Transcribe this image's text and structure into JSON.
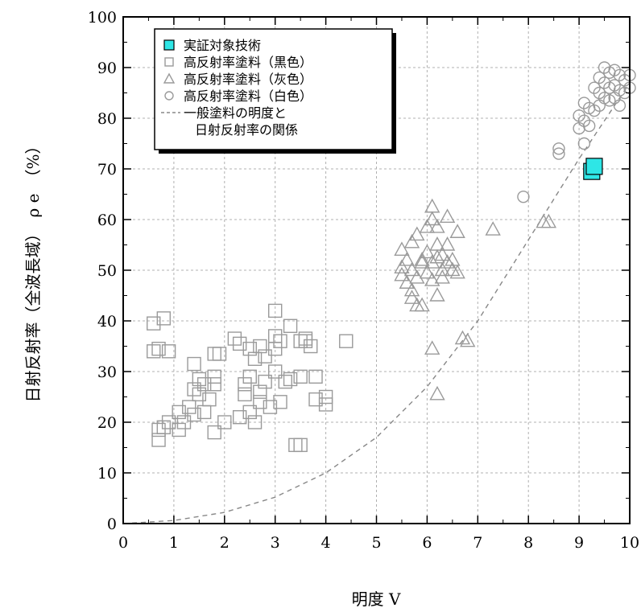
{
  "chart_data": {
    "type": "scatter",
    "xlabel": "明度 V",
    "ylabel": "日射反射率（全波長域）　ρ e　（%）",
    "xlim": [
      0,
      10
    ],
    "ylim": [
      0,
      100
    ],
    "x_ticks": [
      0,
      1,
      2,
      3,
      4,
      5,
      6,
      7,
      8,
      9,
      10
    ],
    "y_ticks": [
      0,
      10,
      20,
      30,
      40,
      50,
      60,
      70,
      80,
      90,
      100
    ],
    "grid": true,
    "legend_position": "top-left",
    "colors": {
      "target": "#2ee6e6",
      "marker_gray": "#9a9a9a",
      "curve": "#888888",
      "frame": "#000000"
    },
    "series": [
      {
        "name": "実証対象技術",
        "marker": "square-filled",
        "points": [
          [
            9.25,
            69.5
          ],
          [
            9.3,
            70.5
          ]
        ]
      },
      {
        "name": "高反射率塗料（黒色）",
        "marker": "square",
        "points": [
          [
            0.6,
            34
          ],
          [
            0.6,
            39.5
          ],
          [
            0.7,
            16.5
          ],
          [
            0.7,
            18.5
          ],
          [
            0.7,
            34.5
          ],
          [
            0.8,
            40.5
          ],
          [
            0.8,
            19
          ],
          [
            0.9,
            34
          ],
          [
            0.9,
            20
          ],
          [
            1.1,
            18.5
          ],
          [
            1.1,
            22
          ],
          [
            1.2,
            20
          ],
          [
            1.3,
            23
          ],
          [
            1.4,
            31.5
          ],
          [
            1.4,
            26.5
          ],
          [
            1.4,
            21.5
          ],
          [
            1.5,
            28.5
          ],
          [
            1.5,
            25.5
          ],
          [
            1.6,
            22
          ],
          [
            1.6,
            27.5
          ],
          [
            1.7,
            24.5
          ],
          [
            1.8,
            29
          ],
          [
            1.8,
            27.5
          ],
          [
            1.8,
            33.5
          ],
          [
            1.8,
            18
          ],
          [
            1.9,
            33.5
          ],
          [
            2.0,
            20
          ],
          [
            2.2,
            36.5
          ],
          [
            2.3,
            35.5
          ],
          [
            2.3,
            21
          ],
          [
            2.4,
            27.5
          ],
          [
            2.4,
            25.5
          ],
          [
            2.5,
            34.5
          ],
          [
            2.5,
            29
          ],
          [
            2.5,
            22
          ],
          [
            2.6,
            32.5
          ],
          [
            2.6,
            20
          ],
          [
            2.7,
            35
          ],
          [
            2.7,
            26
          ],
          [
            2.7,
            24
          ],
          [
            2.8,
            33
          ],
          [
            2.8,
            28
          ],
          [
            2.9,
            23
          ],
          [
            3.0,
            42
          ],
          [
            3.0,
            37
          ],
          [
            3.0,
            34.5
          ],
          [
            3.0,
            30
          ],
          [
            3.1,
            36
          ],
          [
            3.1,
            24
          ],
          [
            3.2,
            28
          ],
          [
            3.3,
            39
          ],
          [
            3.3,
            28.5
          ],
          [
            3.4,
            15.5
          ],
          [
            3.5,
            36
          ],
          [
            3.5,
            29
          ],
          [
            3.5,
            15.5
          ],
          [
            3.6,
            36.5
          ],
          [
            3.6,
            36
          ],
          [
            3.7,
            35
          ],
          [
            3.8,
            29
          ],
          [
            3.8,
            24.5
          ],
          [
            4.0,
            25
          ],
          [
            4.0,
            23.5
          ],
          [
            4.4,
            36
          ]
        ]
      },
      {
        "name": "高反射率塗料（灰色）",
        "marker": "triangle",
        "points": [
          [
            5.5,
            49
          ],
          [
            5.5,
            50.5
          ],
          [
            5.5,
            54
          ],
          [
            5.6,
            47.5
          ],
          [
            5.6,
            52
          ],
          [
            5.7,
            46
          ],
          [
            5.7,
            44.5
          ],
          [
            5.7,
            50
          ],
          [
            5.7,
            55.5
          ],
          [
            5.8,
            57
          ],
          [
            5.8,
            43
          ],
          [
            5.8,
            48.5
          ],
          [
            5.9,
            52
          ],
          [
            5.9,
            51.5
          ],
          [
            5.9,
            43
          ],
          [
            6.0,
            53.5
          ],
          [
            6.0,
            58.5
          ],
          [
            6.0,
            49.5
          ],
          [
            6.1,
            51.5
          ],
          [
            6.1,
            62.5
          ],
          [
            6.1,
            60
          ],
          [
            6.1,
            48
          ],
          [
            6.1,
            34.5
          ],
          [
            6.2,
            58.5
          ],
          [
            6.2,
            55
          ],
          [
            6.2,
            52.5
          ],
          [
            6.2,
            45
          ],
          [
            6.2,
            25.5
          ],
          [
            6.3,
            53
          ],
          [
            6.3,
            50
          ],
          [
            6.3,
            48.5
          ],
          [
            6.4,
            60.5
          ],
          [
            6.4,
            55
          ],
          [
            6.4,
            51.5
          ],
          [
            6.5,
            52
          ],
          [
            6.5,
            50
          ],
          [
            6.6,
            57.5
          ],
          [
            6.6,
            49.5
          ],
          [
            6.7,
            36.5
          ],
          [
            6.8,
            36
          ],
          [
            7.3,
            58
          ],
          [
            8.3,
            59.5
          ],
          [
            8.4,
            59.5
          ]
        ]
      },
      {
        "name": "高反射率塗料（白色）",
        "marker": "circle",
        "points": [
          [
            7.9,
            64.5
          ],
          [
            8.6,
            74
          ],
          [
            8.6,
            73
          ],
          [
            9.0,
            78
          ],
          [
            9.0,
            80.5
          ],
          [
            9.1,
            75
          ],
          [
            9.1,
            83
          ],
          [
            9.1,
            79.5
          ],
          [
            9.2,
            82
          ],
          [
            9.2,
            78.5
          ],
          [
            9.3,
            86
          ],
          [
            9.3,
            81.5
          ],
          [
            9.4,
            88
          ],
          [
            9.4,
            85
          ],
          [
            9.4,
            82.5
          ],
          [
            9.5,
            90
          ],
          [
            9.5,
            87
          ],
          [
            9.5,
            84
          ],
          [
            9.6,
            89
          ],
          [
            9.6,
            86
          ],
          [
            9.6,
            83.5
          ],
          [
            9.7,
            89.5
          ],
          [
            9.7,
            86.5
          ],
          [
            9.7,
            84
          ],
          [
            9.8,
            88.5
          ],
          [
            9.8,
            85.5
          ],
          [
            9.8,
            82.5
          ],
          [
            9.9,
            87.5
          ],
          [
            9.9,
            85
          ],
          [
            10.0,
            88.5
          ],
          [
            10.0,
            86
          ]
        ]
      },
      {
        "name": "一般塗料の明度と日射反射率の関係",
        "legend_lines": [
          "一般塗料の明度と",
          "日射反射率の関係"
        ],
        "type": "line",
        "style": "dashed",
        "points": [
          [
            0,
            0
          ],
          [
            1,
            0.6
          ],
          [
            2,
            2.2
          ],
          [
            3,
            5.2
          ],
          [
            4,
            10
          ],
          [
            5,
            17
          ],
          [
            6,
            27
          ],
          [
            7,
            40
          ],
          [
            8,
            56
          ],
          [
            9,
            72
          ],
          [
            10,
            87
          ]
        ]
      }
    ]
  }
}
